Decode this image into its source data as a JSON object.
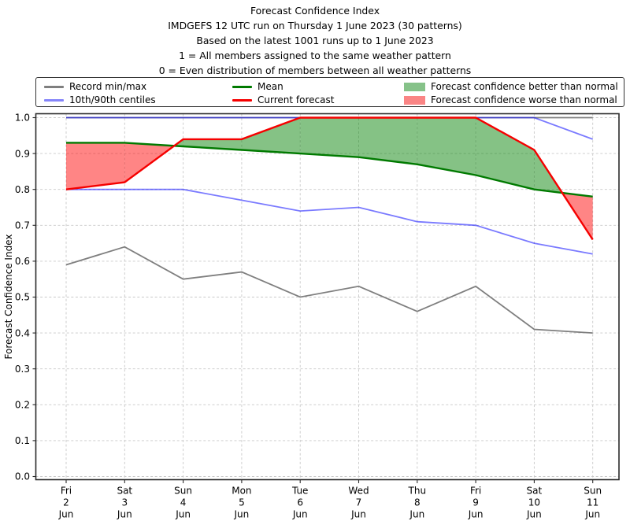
{
  "header": {
    "title_lines": [
      "Forecast Confidence Index",
      "IMDGEFS 12 UTC run on Thursday 1 June 2023 (30 patterns)",
      "Based on the latest 1001 runs up to 1 June 2023",
      "1 = All members assigned to the same weather pattern",
      "0 = Even distribution of members between all weather patterns"
    ]
  },
  "legend": {
    "items": [
      {
        "label": "Record min/max",
        "swatch": "line",
        "color": "#7f7f7f"
      },
      {
        "label": "10th/90th centiles",
        "swatch": "line",
        "color": "#8585fa"
      },
      {
        "label": "Mean",
        "swatch": "line",
        "color": "#007a00"
      },
      {
        "label": "Current forecast",
        "swatch": "line",
        "color": "#f50000"
      },
      {
        "label": "Forecast confidence better than normal",
        "swatch": "patch",
        "color": "#86c289"
      },
      {
        "label": "Forecast confidence worse than normal",
        "swatch": "patch",
        "color": "#fa8585"
      }
    ]
  },
  "chart_data": {
    "type": "line",
    "title": "Forecast Confidence Index",
    "ylabel": "Forecast Confidence Index",
    "ylim": [
      0.0,
      1.0
    ],
    "ytick_step": 0.1,
    "grid": "dashed",
    "legend_position": "top",
    "x_tick_labels": [
      [
        "Fri",
        "2",
        "Jun"
      ],
      [
        "Sat",
        "3",
        "Jun"
      ],
      [
        "Sun",
        "4",
        "Jun"
      ],
      [
        "Mon",
        "5",
        "Jun"
      ],
      [
        "Tue",
        "6",
        "Jun"
      ],
      [
        "Wed",
        "7",
        "Jun"
      ],
      [
        "Thu",
        "8",
        "Jun"
      ],
      [
        "Fri",
        "9",
        "Jun"
      ],
      [
        "Sat",
        "10",
        "Jun"
      ],
      [
        "Sun",
        "11",
        "Jun"
      ]
    ],
    "series": [
      {
        "name": "Record max",
        "color": "#7f7f7f",
        "width": 1.8,
        "opacity": 1,
        "values": [
          1.0,
          1.0,
          1.0,
          1.0,
          1.0,
          1.0,
          1.0,
          1.0,
          1.0,
          1.0
        ]
      },
      {
        "name": "Record min",
        "color": "#7f7f7f",
        "width": 1.8,
        "opacity": 1,
        "values": [
          0.59,
          0.64,
          0.55,
          0.57,
          0.5,
          0.53,
          0.46,
          0.53,
          0.41,
          0.4
        ]
      },
      {
        "name": "90th centile",
        "color": "#0000ff",
        "width": 1.8,
        "opacity": 0.52,
        "values": [
          1.0,
          1.0,
          1.0,
          1.0,
          1.0,
          1.0,
          1.0,
          1.0,
          1.0,
          0.94
        ]
      },
      {
        "name": "10th centile",
        "color": "#0000ff",
        "width": 1.8,
        "opacity": 0.52,
        "values": [
          0.8,
          0.8,
          0.8,
          0.77,
          0.74,
          0.75,
          0.71,
          0.7,
          0.65,
          0.62
        ]
      },
      {
        "name": "Mean",
        "color": "#007a00",
        "width": 2.4,
        "opacity": 1,
        "values": [
          0.93,
          0.93,
          0.92,
          0.91,
          0.9,
          0.89,
          0.87,
          0.84,
          0.8,
          0.78
        ]
      },
      {
        "name": "Current forecast",
        "color": "#f50000",
        "width": 2.4,
        "opacity": 1,
        "values": [
          0.8,
          0.82,
          0.94,
          0.94,
          1.0,
          1.0,
          1.0,
          1.0,
          0.91,
          0.66
        ]
      }
    ],
    "fill_between": {
      "upper": "Current forecast",
      "lower": "Mean",
      "better_color": "#008000",
      "worse_color": "#ff0000",
      "fill_opacity": 0.48
    },
    "colors": {
      "grid": "#c9c9c9",
      "spine": "#2b2b2b"
    }
  }
}
